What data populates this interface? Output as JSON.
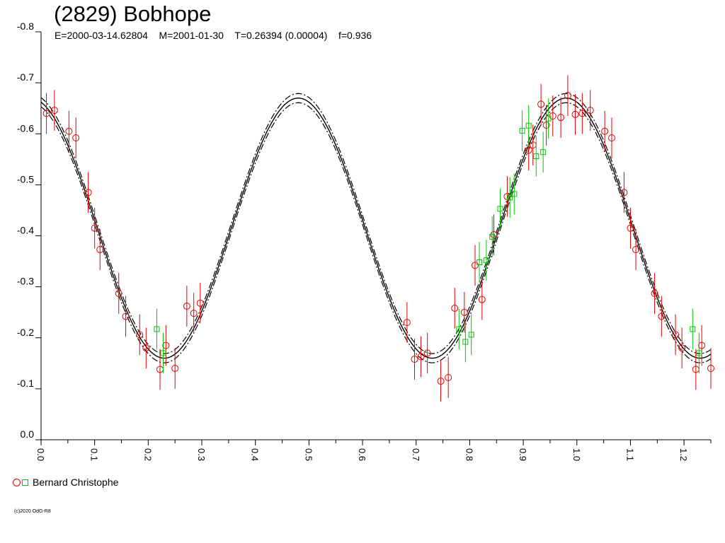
{
  "header": {
    "title": "(2829) Bobhope",
    "params": "E=2000-03-14.62804    M=2001-01-30    T=0.26394 (0.00004)    f=0.936"
  },
  "legend": {
    "label": "Bernard Christophe"
  },
  "copyright": "(c)2020 OdG-R8",
  "colors": {
    "series_circle": "#e00000",
    "series_square": "#00c800",
    "curve": "#000000",
    "axis": "#000000"
  },
  "chart_data": {
    "type": "scatter",
    "xlim": [
      0,
      1.25
    ],
    "ylim": [
      0,
      -0.8
    ],
    "x_ticks": [
      "0.0",
      "0.1",
      "0.2",
      "0.3",
      "0.4",
      "0.5",
      "0.6",
      "0.7",
      "0.8",
      "0.9",
      "1.0",
      "1.1",
      "1.2"
    ],
    "y_ticks": [
      "0.0",
      "-0.1",
      "-0.2",
      "-0.3",
      "-0.4",
      "-0.5",
      "-0.6",
      "-0.7",
      "-0.8"
    ],
    "model": {
      "period_fraction": 0.5,
      "mean": -0.415,
      "amplitude": 0.255,
      "max_phase": 0.98,
      "envelope": 0.009
    },
    "series": [
      {
        "name": "Bernard Christophe",
        "marker": "circle",
        "points": [
          [
            0.01,
            -0.64,
            0.04
          ],
          [
            0.025,
            -0.646,
            0.04
          ],
          [
            0.052,
            -0.605,
            0.04
          ],
          [
            0.065,
            -0.592,
            0.04
          ],
          [
            0.088,
            -0.485,
            0.04
          ],
          [
            0.1,
            -0.415,
            0.04
          ],
          [
            0.11,
            -0.373,
            0.04
          ],
          [
            0.145,
            -0.287,
            0.04
          ],
          [
            0.158,
            -0.242,
            0.04
          ],
          [
            0.184,
            -0.206,
            0.04
          ],
          [
            0.196,
            -0.18,
            0.04
          ],
          [
            0.222,
            -0.138,
            0.04
          ],
          [
            0.233,
            -0.185,
            0.04
          ],
          [
            0.25,
            -0.14,
            0.04
          ],
          [
            0.272,
            -0.262,
            0.04
          ],
          [
            0.285,
            -0.248,
            0.04
          ],
          [
            0.297,
            -0.268,
            0.04
          ],
          [
            0.683,
            -0.23,
            0.04
          ],
          [
            0.697,
            -0.158,
            0.04
          ],
          [
            0.709,
            -0.163,
            0.04
          ],
          [
            0.721,
            -0.17,
            0.04
          ],
          [
            0.746,
            -0.115,
            0.04
          ],
          [
            0.76,
            -0.122,
            0.04
          ],
          [
            0.772,
            -0.258,
            0.04
          ],
          [
            0.79,
            -0.25,
            0.04
          ],
          [
            0.81,
            -0.342,
            0.04
          ],
          [
            0.823,
            -0.275,
            0.04
          ],
          [
            0.845,
            -0.402,
            0.04
          ],
          [
            0.87,
            -0.477,
            0.04
          ],
          [
            0.91,
            -0.568,
            0.04
          ],
          [
            0.918,
            -0.578,
            0.04
          ],
          [
            0.933,
            -0.658,
            0.04
          ],
          [
            0.943,
            -0.617,
            0.04
          ],
          [
            0.955,
            -0.635,
            0.04
          ],
          [
            0.97,
            -0.632,
            0.04
          ],
          [
            0.983,
            -0.675,
            0.04
          ],
          [
            0.997,
            -0.638,
            0.04
          ],
          [
            1.01,
            -0.64,
            0.04
          ],
          [
            1.025,
            -0.646,
            0.04
          ],
          [
            1.052,
            -0.605,
            0.04
          ],
          [
            1.065,
            -0.592,
            0.04
          ],
          [
            1.088,
            -0.485,
            0.04
          ],
          [
            1.1,
            -0.415,
            0.04
          ],
          [
            1.11,
            -0.373,
            0.04
          ],
          [
            1.145,
            -0.287,
            0.04
          ],
          [
            1.158,
            -0.242,
            0.04
          ],
          [
            1.184,
            -0.206,
            0.04
          ],
          [
            1.196,
            -0.18,
            0.04
          ],
          [
            1.222,
            -0.138,
            0.04
          ],
          [
            1.233,
            -0.185,
            0.04
          ],
          [
            1.25,
            -0.14,
            0.04
          ]
        ]
      },
      {
        "name": "Bernard Christophe",
        "marker": "square",
        "points": [
          [
            0.216,
            -0.217,
            0.04
          ],
          [
            0.228,
            -0.17,
            0.04
          ],
          [
            0.78,
            -0.217,
            0.04
          ],
          [
            0.792,
            -0.192,
            0.04
          ],
          [
            0.803,
            -0.206,
            0.04
          ],
          [
            0.818,
            -0.348,
            0.04
          ],
          [
            0.831,
            -0.352,
            0.04
          ],
          [
            0.842,
            -0.398,
            0.04
          ],
          [
            0.857,
            -0.453,
            0.04
          ],
          [
            0.875,
            -0.475,
            0.04
          ],
          [
            0.883,
            -0.482,
            0.04
          ],
          [
            0.898,
            -0.606,
            0.04
          ],
          [
            0.91,
            -0.616,
            0.04
          ],
          [
            0.924,
            -0.556,
            0.04
          ],
          [
            0.937,
            -0.564,
            0.04
          ],
          [
            0.947,
            -0.63,
            0.04
          ],
          [
            1.216,
            -0.217,
            0.04
          ],
          [
            1.228,
            -0.17,
            0.04
          ]
        ]
      }
    ]
  }
}
